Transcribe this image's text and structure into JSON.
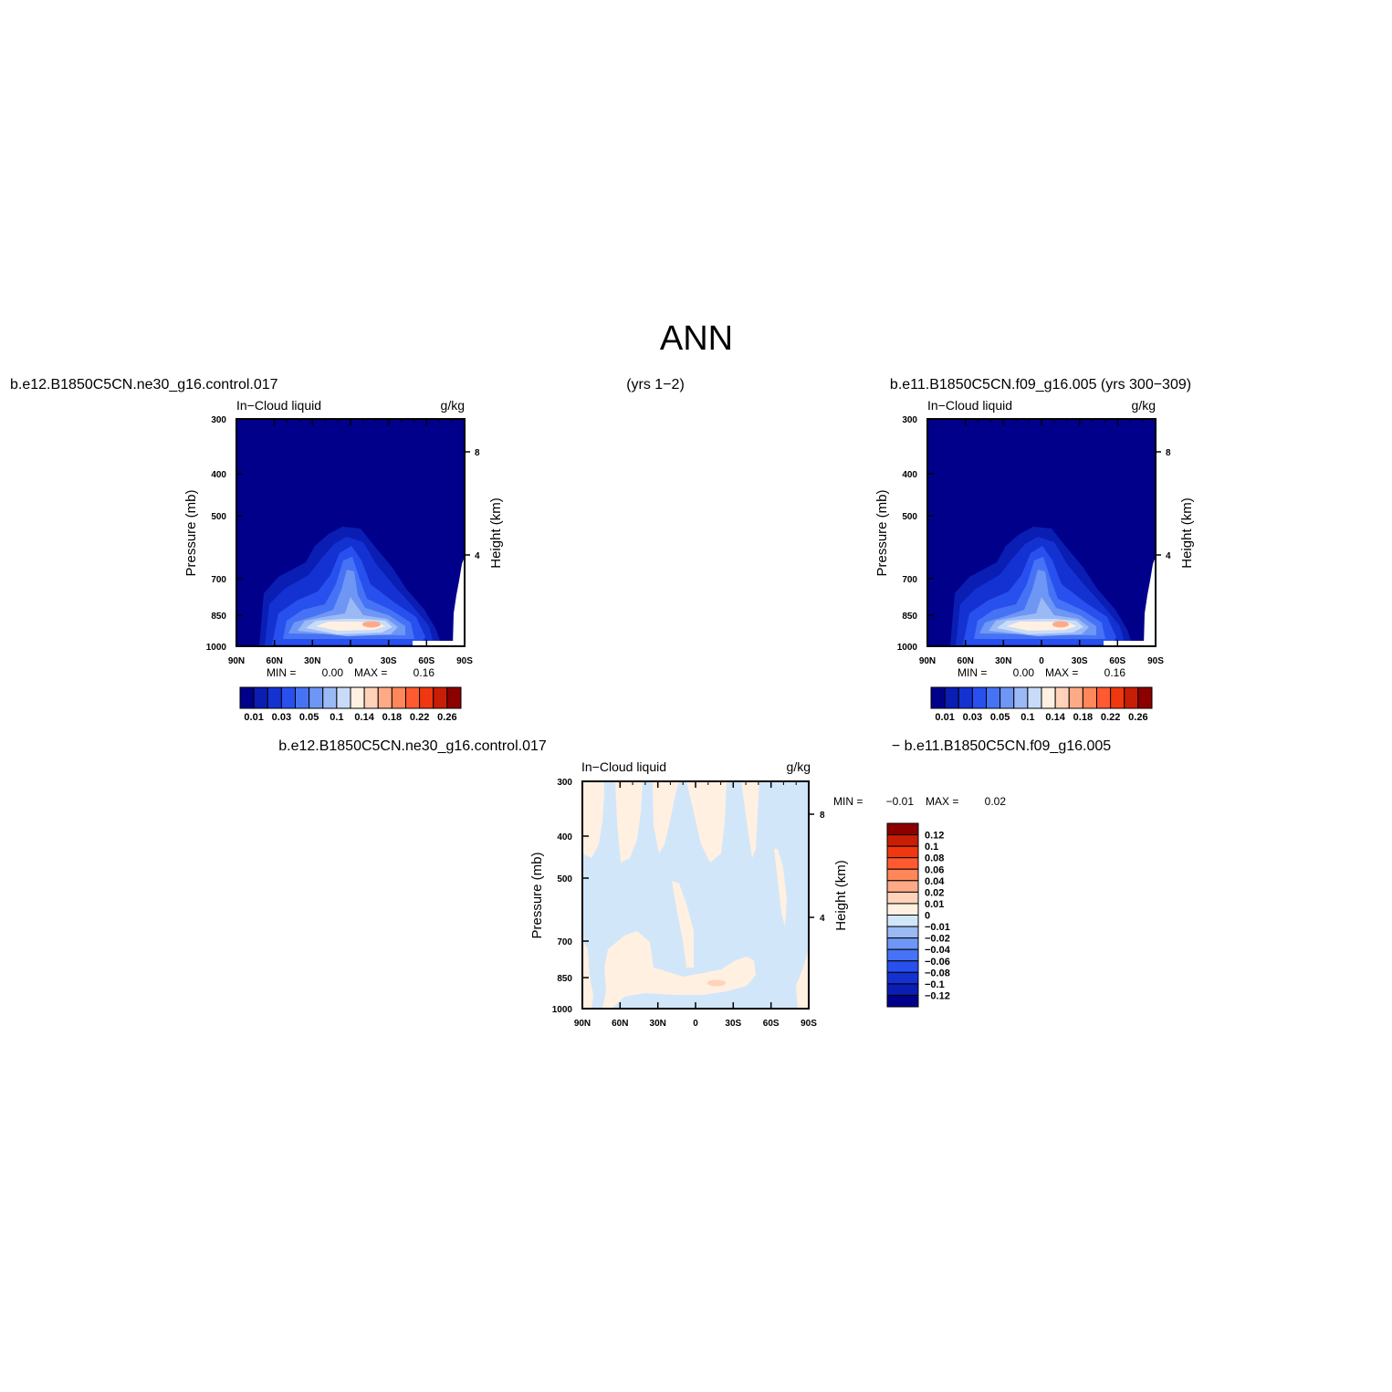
{
  "figure_title": "ANN",
  "top_header": {
    "left": "b.e12.B1850C5CN.ne30_g16.control.017",
    "center": "(yrs 1−2)",
    "right": "b.e11.B1850C5CN.f09_g16.005 (yrs 300−309)"
  },
  "diff_header": {
    "left": "b.e12.B1850C5CN.ne30_g16.control.017",
    "right": "− b.e11.B1850C5CN.f09_g16.005"
  },
  "colors": {
    "abs_scale": [
      "#00008b",
      "#0a1eb4",
      "#1432d2",
      "#2850ee",
      "#4673f5",
      "#6e96f5",
      "#9bb9f5",
      "#c8dcfa",
      "#fff0e1",
      "#ffd2b9",
      "#ffaa87",
      "#ff875a",
      "#ff5a32",
      "#f0370f",
      "#c81e05",
      "#8c0000"
    ],
    "diff_scale": [
      "#00008b",
      "#0a1eb4",
      "#1432d2",
      "#2850ee",
      "#4673f5",
      "#6e96f5",
      "#9bb9f5",
      "#d2e6fa",
      "#fff0e1",
      "#ffd2b9",
      "#ffaa87",
      "#ff875a",
      "#ff5a32",
      "#f0370f",
      "#c81e05",
      "#8c0000"
    ]
  },
  "chart_data": [
    {
      "type": "heatmap",
      "panel": "model-a",
      "title": "In−Cloud liquid",
      "units": "g/kg",
      "xlabel": "",
      "ylabel": "Pressure (mb)",
      "y2label": "Height (km)",
      "x_ticks": [
        "90N",
        "60N",
        "30N",
        "0",
        "30S",
        "60S",
        "90S"
      ],
      "y_ticks": [
        "300",
        "400",
        "500",
        "700",
        "850",
        "1000"
      ],
      "y2_ticks": [
        "8",
        "4"
      ],
      "ylim": [
        300,
        1000
      ],
      "min_label": "MIN =",
      "min_value": "0.00",
      "max_label": "MAX =",
      "max_value": "0.16",
      "colorbar_labels": [
        "0.01",
        "0.03",
        "0.05",
        "0.1",
        "0.14",
        "0.18",
        "0.22",
        "0.26"
      ]
    },
    {
      "type": "heatmap",
      "panel": "model-b",
      "title": "In−Cloud liquid",
      "units": "g/kg",
      "xlabel": "",
      "ylabel": "Pressure (mb)",
      "y2label": "Height (km)",
      "x_ticks": [
        "90N",
        "60N",
        "30N",
        "0",
        "30S",
        "60S",
        "90S"
      ],
      "y_ticks": [
        "300",
        "400",
        "500",
        "700",
        "850",
        "1000"
      ],
      "y2_ticks": [
        "8",
        "4"
      ],
      "ylim": [
        300,
        1000
      ],
      "min_label": "MIN =",
      "min_value": "0.00",
      "max_label": "MAX =",
      "max_value": "0.16",
      "colorbar_labels": [
        "0.01",
        "0.03",
        "0.05",
        "0.1",
        "0.14",
        "0.18",
        "0.22",
        "0.26"
      ]
    },
    {
      "type": "heatmap",
      "panel": "difference",
      "title": "In−Cloud liquid",
      "units": "g/kg",
      "xlabel": "",
      "ylabel": "Pressure (mb)",
      "y2label": "Height (km)",
      "x_ticks": [
        "90N",
        "60N",
        "30N",
        "0",
        "30S",
        "60S",
        "90S"
      ],
      "y_ticks": [
        "300",
        "400",
        "500",
        "700",
        "850",
        "1000"
      ],
      "y2_ticks": [
        "8",
        "4"
      ],
      "ylim": [
        300,
        1000
      ],
      "min_label": "MIN =",
      "min_value": "−0.01",
      "max_label": "MAX =",
      "max_value": "0.02",
      "colorbar_labels": [
        "0.12",
        "0.1",
        "0.08",
        "0.06",
        "0.04",
        "0.02",
        "0.01",
        "0",
        "−0.01",
        "−0.02",
        "−0.04",
        "−0.06",
        "−0.08",
        "−0.1",
        "−0.12"
      ]
    }
  ]
}
